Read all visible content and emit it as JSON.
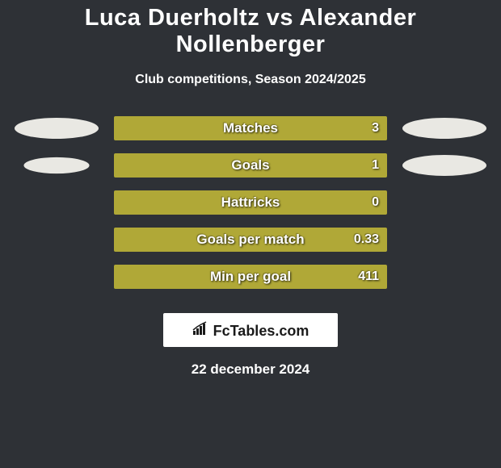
{
  "background_color": "#2e3136",
  "title": "Luca Duerholtz vs Alexander Nollenberger",
  "title_color": "#ffffff",
  "title_fontsize": 29,
  "subtitle": "Club competitions, Season 2024/2025",
  "subtitle_color": "#ffffff",
  "subtitle_fontsize": 16,
  "bar_fill_color": "#b0a837",
  "bar_outline_color": "#b0a837",
  "ellipse_left_color": "#e9e8e3",
  "ellipse_right_color": "#e9e8e3",
  "stats": [
    {
      "label": "Matches",
      "value": "3",
      "fill_pct": 100,
      "show_left_ellipse": true,
      "show_right_ellipse": true
    },
    {
      "label": "Goals",
      "value": "1",
      "fill_pct": 100,
      "show_left_ellipse": true,
      "show_right_ellipse": true
    },
    {
      "label": "Hattricks",
      "value": "0",
      "fill_pct": 100,
      "show_left_ellipse": false,
      "show_right_ellipse": false
    },
    {
      "label": "Goals per match",
      "value": "0.33",
      "fill_pct": 100,
      "show_left_ellipse": false,
      "show_right_ellipse": false
    },
    {
      "label": "Min per goal",
      "value": "411",
      "fill_pct": 100,
      "show_left_ellipse": false,
      "show_right_ellipse": false
    }
  ],
  "brand_text": "FcTables.com",
  "brand_bg": "#ffffff",
  "brand_text_color": "#1a1a1a",
  "date": "22 december 2024",
  "date_color": "#ffffff",
  "left_ellipse_scales": [
    1.0,
    0.78
  ],
  "right_ellipse_scales": [
    1.0,
    1.0
  ],
  "brand_icon_color": "#1a1a1a"
}
